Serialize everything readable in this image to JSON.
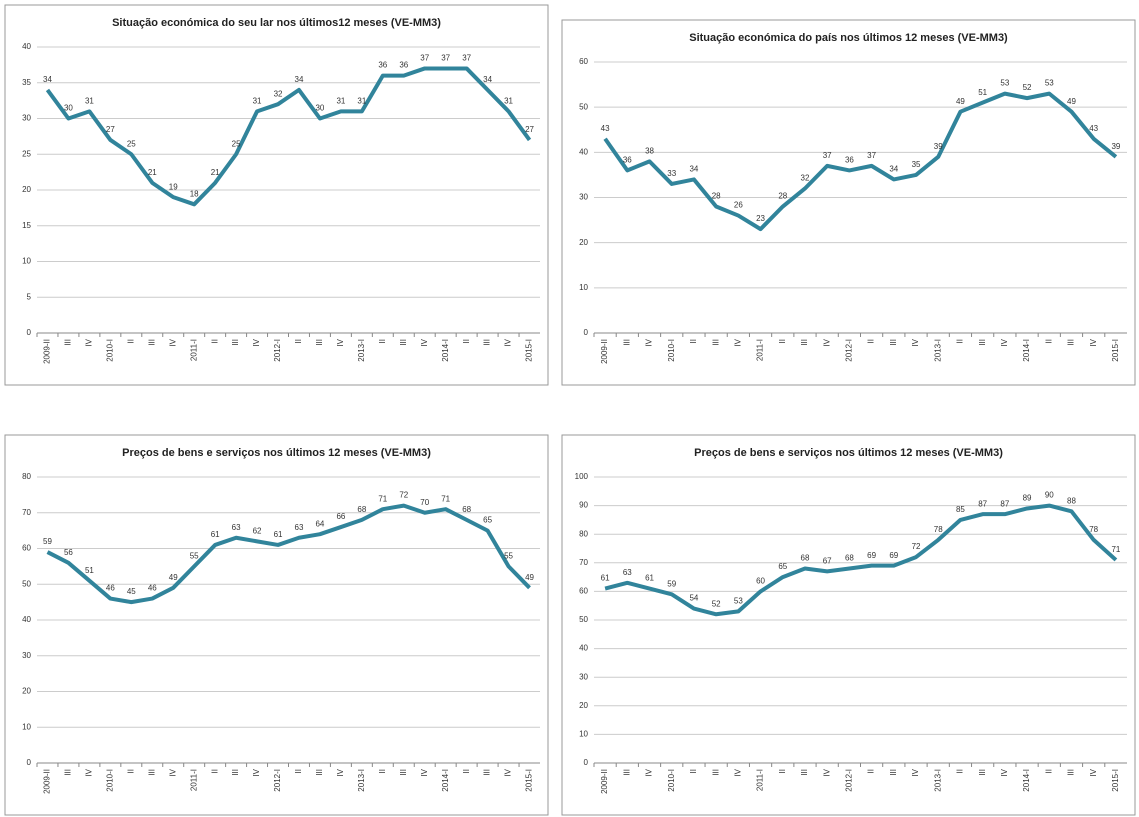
{
  "chart_data": [
    {
      "type": "line",
      "title": "Situação económica do seu lar nos últimos12 meses  (VE-MM3)",
      "color": "#31849b",
      "categories": [
        "2009-II",
        "III",
        "IV",
        "2010-I",
        "II",
        "III",
        "IV",
        "2011-I",
        "II",
        "III",
        "IV",
        "2012-I",
        "II",
        "III",
        "IV",
        "2013-I",
        "II",
        "III",
        "IV",
        "2014-I",
        "II",
        "III",
        "IV",
        "2015-I"
      ],
      "values": [
        34,
        30,
        31,
        27,
        25,
        21,
        19,
        18,
        21,
        25,
        31,
        32,
        34,
        30,
        31,
        31,
        36,
        36,
        37,
        37,
        37,
        34,
        31,
        27
      ],
      "ylim": [
        0,
        40
      ],
      "yticks": [
        0,
        5,
        10,
        15,
        20,
        25,
        30,
        35,
        40
      ],
      "grid": true
    },
    {
      "type": "line",
      "title": "Situação económica do  país nos últimos 12 meses  (VE-MM3)",
      "color": "#31849b",
      "categories": [
        "2009-II",
        "III",
        "IV",
        "2010-I",
        "II",
        "III",
        "IV",
        "2011-I",
        "II",
        "III",
        "IV",
        "2012-I",
        "II",
        "III",
        "IV",
        "2013-I",
        "II",
        "III",
        "IV",
        "2014-I",
        "II",
        "III",
        "IV",
        "2015-I"
      ],
      "values": [
        43,
        36,
        38,
        33,
        34,
        28,
        26,
        23,
        28,
        32,
        37,
        36,
        37,
        34,
        35,
        39,
        49,
        51,
        53,
        52,
        53,
        49,
        43,
        39
      ],
      "ylim": [
        0,
        60
      ],
      "yticks": [
        0,
        10,
        20,
        30,
        40,
        50,
        60
      ],
      "grid": true
    },
    {
      "type": "line",
      "title": "Preços de bens e serviços nos últimos 12 meses  (VE-MM3)",
      "color": "#31849b",
      "categories": [
        "2009-II",
        "III",
        "IV",
        "2010-I",
        "II",
        "III",
        "IV",
        "2011-I",
        "II",
        "III",
        "IV",
        "2012-I",
        "II",
        "III",
        "IV",
        "2013-I",
        "II",
        "III",
        "IV",
        "2014-I",
        "II",
        "III",
        "IV",
        "2015-I"
      ],
      "values": [
        59,
        56,
        51,
        46,
        45,
        46,
        49,
        55,
        61,
        63,
        62,
        61,
        63,
        64,
        66,
        68,
        71,
        72,
        70,
        71,
        68,
        65,
        55,
        49
      ],
      "ylim": [
        0,
        80
      ],
      "yticks": [
        0,
        10,
        20,
        30,
        40,
        50,
        60,
        70,
        80
      ],
      "grid": true
    },
    {
      "type": "line",
      "title": "Preços de bens e serviços nos últimos 12 meses  (VE-MM3)",
      "color": "#31849b",
      "categories": [
        "2009-II",
        "III",
        "IV",
        "2010-I",
        "II",
        "III",
        "IV",
        "2011-I",
        "II",
        "III",
        "IV",
        "2012-I",
        "II",
        "III",
        "IV",
        "2013-I",
        "II",
        "III",
        "IV",
        "2014-I",
        "II",
        "III",
        "IV",
        "2015-I"
      ],
      "values": [
        61,
        63,
        61,
        59,
        54,
        52,
        53,
        60,
        65,
        68,
        67,
        68,
        69,
        69,
        72,
        78,
        85,
        87,
        87,
        89,
        90,
        88,
        78,
        71
      ],
      "ylim": [
        0,
        100
      ],
      "yticks": [
        0,
        10,
        20,
        30,
        40,
        50,
        60,
        70,
        80,
        90,
        100
      ],
      "grid": true
    }
  ]
}
